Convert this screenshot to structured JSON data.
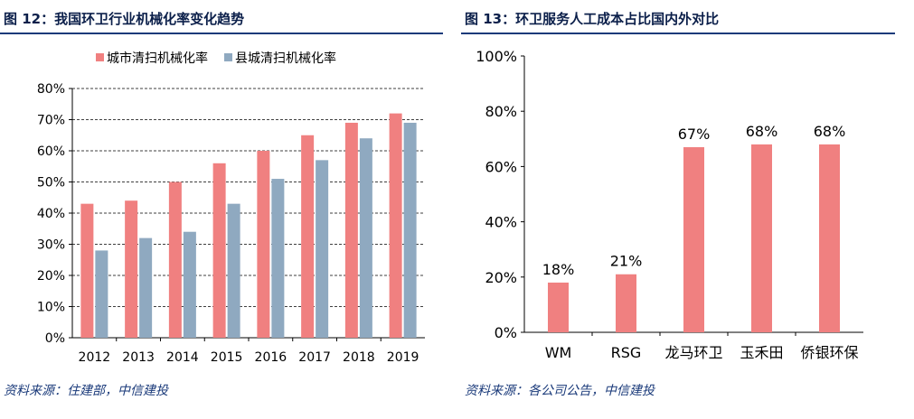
{
  "left": {
    "title": "图 12：我国环卫行业机械化率变化趋势",
    "source": "资料来源：住建部，中信建投",
    "chart_data": {
      "type": "bar",
      "categories": [
        "2012",
        "2013",
        "2014",
        "2015",
        "2016",
        "2017",
        "2018",
        "2019"
      ],
      "series": [
        {
          "name": "城市清扫机械化率",
          "color": "#f08080",
          "values": [
            43,
            44,
            50,
            56,
            60,
            65,
            69,
            72
          ]
        },
        {
          "name": "县城清扫机械化率",
          "color": "#8fa9c0",
          "values": [
            28,
            32,
            34,
            43,
            51,
            57,
            64,
            69
          ]
        }
      ],
      "ylim": [
        0,
        80
      ],
      "yticks": [
        0,
        10,
        20,
        30,
        40,
        50,
        60,
        70,
        80
      ],
      "ytick_labels": [
        "0%",
        "10%",
        "20%",
        "30%",
        "40%",
        "50%",
        "60%",
        "70%",
        "80%"
      ],
      "grid": true,
      "legend": "top-left"
    }
  },
  "right": {
    "title": "图 13：环卫服务人工成本占比国内外对比",
    "source": "资料来源：各公司公告，中信建投",
    "chart_data": {
      "type": "bar",
      "categories": [
        "WM",
        "RSG",
        "龙马环卫",
        "玉禾田",
        "侨银环保"
      ],
      "values": [
        18,
        21,
        67,
        68,
        68
      ],
      "value_labels": [
        "18%",
        "21%",
        "67%",
        "68%",
        "68%"
      ],
      "color": "#f08080",
      "ylim": [
        0,
        100
      ],
      "yticks": [
        0,
        20,
        40,
        60,
        80,
        100
      ],
      "ytick_labels": [
        "0%",
        "20%",
        "40%",
        "60%",
        "80%",
        "100%"
      ],
      "grid": false
    }
  }
}
